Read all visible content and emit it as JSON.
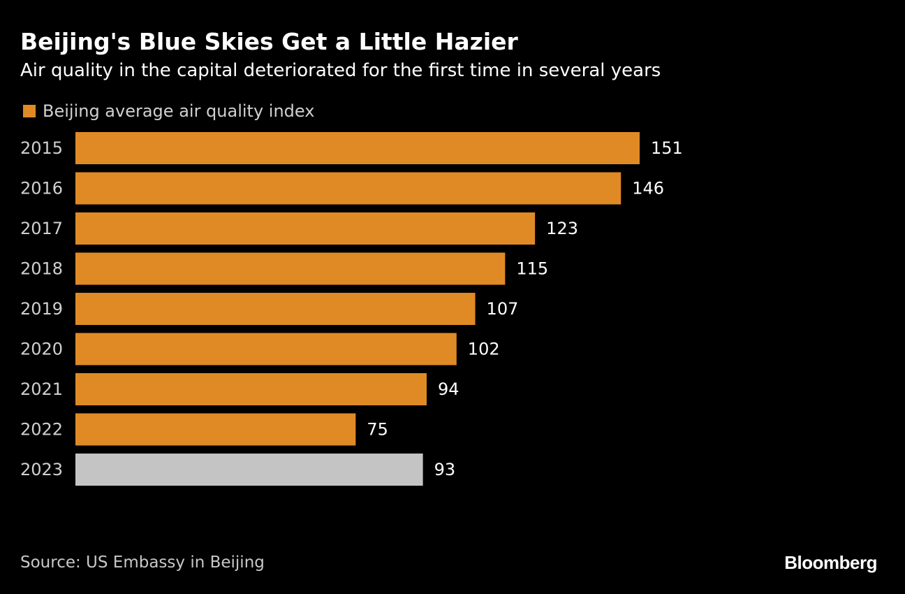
{
  "title": "Beijing's Blue Skies Get a Little Hazier",
  "subtitle": "Air quality in the capital deteriorated for the first time in several years",
  "legend": {
    "label": "Beijing average air quality index",
    "color": "#e08a25"
  },
  "source": "Source: US Embassy in Beijing",
  "brand": "Bloomberg",
  "colors": {
    "primary_bar": "#e08a25",
    "highlight_bar": "#c4c4c4",
    "background": "#000000",
    "text": "#ffffff"
  },
  "chart_data": {
    "type": "bar",
    "orientation": "horizontal",
    "title": "Beijing's Blue Skies Get a Little Hazier",
    "xlabel": "",
    "ylabel": "",
    "xlim": [
      0,
      151
    ],
    "grid": false,
    "legend_position": "top-left",
    "categories": [
      "2015",
      "2016",
      "2017",
      "2018",
      "2019",
      "2020",
      "2021",
      "2022",
      "2023"
    ],
    "series": [
      {
        "name": "Beijing average air quality index",
        "values": [
          151,
          146,
          123,
          115,
          107,
          102,
          94,
          75,
          93
        ]
      }
    ],
    "highlighted_category": "2023"
  }
}
